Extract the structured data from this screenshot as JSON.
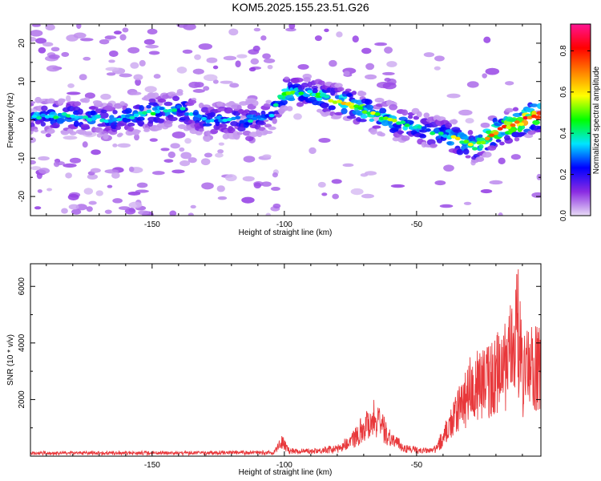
{
  "title": "KOM5.2025.155.23.51.G26",
  "chart_data": [
    {
      "type": "heatmap",
      "xlabel": "Height of straight line (km)",
      "ylabel": "Frequency (Hz)",
      "xlim": [
        -196,
        -3
      ],
      "ylim": [
        -25,
        25
      ],
      "xticks": [
        -150,
        -100,
        -50
      ],
      "yticks": [
        -20,
        -10,
        0,
        10,
        20
      ],
      "colorbar": {
        "label": "Normalized spectral amplitude",
        "range": [
          0,
          0.93
        ],
        "ticks": [
          0.0,
          0.2,
          0.4,
          0.6,
          0.8
        ],
        "colors": [
          "#e8dcf6",
          "#8a2be2",
          "#0000ff",
          "#00e5ff",
          "#00ff00",
          "#ffff00",
          "#ff8000",
          "#ff0000",
          "#ff1493"
        ]
      },
      "ridge": [
        {
          "x": -195,
          "f": 1,
          "a": 0.35
        },
        {
          "x": -180,
          "f": 1,
          "a": 0.4
        },
        {
          "x": -165,
          "f": 0,
          "a": 0.35
        },
        {
          "x": -150,
          "f": 2,
          "a": 0.4
        },
        {
          "x": -140,
          "f": 3,
          "a": 0.4
        },
        {
          "x": -130,
          "f": 0,
          "a": 0.35
        },
        {
          "x": -115,
          "f": 0,
          "a": 0.35
        },
        {
          "x": -105,
          "f": 1,
          "a": 0.3
        },
        {
          "x": -101,
          "f": 7,
          "a": 0.55
        },
        {
          "x": -92,
          "f": 7,
          "a": 0.4
        },
        {
          "x": -85,
          "f": 6,
          "a": 0.5
        },
        {
          "x": -75,
          "f": 4,
          "a": 0.6
        },
        {
          "x": -65,
          "f": 1,
          "a": 0.55
        },
        {
          "x": -55,
          "f": -1,
          "a": 0.45
        },
        {
          "x": -45,
          "f": -3,
          "a": 0.35
        },
        {
          "x": -35,
          "f": -5,
          "a": 0.55
        },
        {
          "x": -28,
          "f": -7,
          "a": 0.5
        },
        {
          "x": -20,
          "f": -3,
          "a": 0.7
        },
        {
          "x": -12,
          "f": -1,
          "a": 0.8
        },
        {
          "x": -5,
          "f": 1,
          "a": 0.9
        }
      ]
    },
    {
      "type": "line",
      "xlabel": "Height of straight line (km)",
      "ylabel": "SNR (10 * v/v)",
      "xlim": [
        -196,
        -3
      ],
      "ylim": [
        0,
        6800
      ],
      "xticks": [
        -150,
        -100,
        -50
      ],
      "yticks": [
        2000,
        4000,
        6000
      ],
      "color": "#e8383b",
      "envelope": [
        {
          "x": -196,
          "y": 150
        },
        {
          "x": -140,
          "y": 160
        },
        {
          "x": -104,
          "y": 170
        },
        {
          "x": -101,
          "y": 700
        },
        {
          "x": -98,
          "y": 250
        },
        {
          "x": -90,
          "y": 250
        },
        {
          "x": -80,
          "y": 350
        },
        {
          "x": -75,
          "y": 700
        },
        {
          "x": -70,
          "y": 1400
        },
        {
          "x": -66,
          "y": 1900
        },
        {
          "x": -60,
          "y": 900
        },
        {
          "x": -55,
          "y": 400
        },
        {
          "x": -48,
          "y": 250
        },
        {
          "x": -43,
          "y": 300
        },
        {
          "x": -40,
          "y": 900
        },
        {
          "x": -35,
          "y": 2000
        },
        {
          "x": -30,
          "y": 3200
        },
        {
          "x": -25,
          "y": 3500
        },
        {
          "x": -20,
          "y": 3900
        },
        {
          "x": -15,
          "y": 4600
        },
        {
          "x": -12,
          "y": 6700
        },
        {
          "x": -10,
          "y": 3800
        },
        {
          "x": -6,
          "y": 4500
        },
        {
          "x": -3,
          "y": 4100
        }
      ]
    }
  ]
}
